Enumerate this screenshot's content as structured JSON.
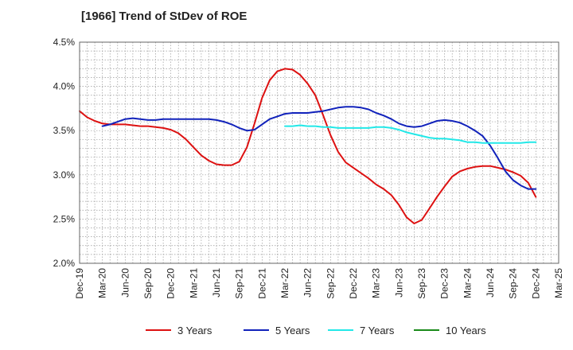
{
  "chart_data": {
    "type": "line",
    "title": "[1966]  Trend of StDev of ROE",
    "xlabel": "",
    "ylabel": "",
    "ylim": [
      2.0,
      4.5
    ],
    "y_ticks": [
      "2.0%",
      "2.5%",
      "3.0%",
      "3.5%",
      "4.0%",
      "4.5%"
    ],
    "y_tick_values": [
      2.0,
      2.5,
      3.0,
      3.5,
      4.0,
      4.5
    ],
    "x_ticks": [
      "Dec-19",
      "Mar-20",
      "Jun-20",
      "Sep-20",
      "Dec-20",
      "Mar-21",
      "Jun-21",
      "Sep-21",
      "Dec-21",
      "Mar-22",
      "Jun-22",
      "Sep-22",
      "Dec-22",
      "Mar-23",
      "Jun-23",
      "Sep-23",
      "Dec-23",
      "Mar-24",
      "Jun-24",
      "Sep-24",
      "Dec-24",
      "Mar-25"
    ],
    "x_tick_values": [
      "2019-12",
      "2020-03",
      "2020-06",
      "2020-09",
      "2020-12",
      "2021-03",
      "2021-06",
      "2021-09",
      "2021-12",
      "2022-03",
      "2022-06",
      "2022-09",
      "2022-12",
      "2023-03",
      "2023-06",
      "2023-09",
      "2023-12",
      "2024-03",
      "2024-06",
      "2024-09",
      "2024-12",
      "2025-03"
    ],
    "grid": true,
    "legend_position": "bottom",
    "series": [
      {
        "name": "3 Years",
        "color": "#dd1111",
        "x": [
          "2019-12",
          "2020-01",
          "2020-02",
          "2020-03",
          "2020-04",
          "2020-05",
          "2020-06",
          "2020-07",
          "2020-08",
          "2020-09",
          "2020-10",
          "2020-11",
          "2020-12",
          "2021-01",
          "2021-02",
          "2021-03",
          "2021-04",
          "2021-05",
          "2021-06",
          "2021-07",
          "2021-08",
          "2021-09",
          "2021-10",
          "2021-11",
          "2021-12",
          "2022-01",
          "2022-02",
          "2022-03",
          "2022-04",
          "2022-05",
          "2022-06",
          "2022-07",
          "2022-08",
          "2022-09",
          "2022-10",
          "2022-11",
          "2022-12",
          "2023-01",
          "2023-02",
          "2023-03",
          "2023-04",
          "2023-05",
          "2023-06",
          "2023-07",
          "2023-08",
          "2023-09",
          "2023-10",
          "2023-11",
          "2023-12",
          "2024-01",
          "2024-02",
          "2024-03",
          "2024-04",
          "2024-05",
          "2024-06",
          "2024-07",
          "2024-08",
          "2024-09",
          "2024-10",
          "2024-11",
          "2024-12"
        ],
        "values": [
          3.72,
          3.65,
          3.61,
          3.58,
          3.57,
          3.57,
          3.57,
          3.56,
          3.55,
          3.55,
          3.54,
          3.53,
          3.51,
          3.47,
          3.4,
          3.31,
          3.22,
          3.16,
          3.12,
          3.11,
          3.11,
          3.15,
          3.31,
          3.58,
          3.87,
          4.07,
          4.17,
          4.2,
          4.19,
          4.13,
          4.03,
          3.9,
          3.68,
          3.45,
          3.26,
          3.14,
          3.08,
          3.02,
          2.96,
          2.89,
          2.84,
          2.77,
          2.66,
          2.52,
          2.45,
          2.49,
          2.62,
          2.75,
          2.87,
          2.98,
          3.04,
          3.07,
          3.09,
          3.1,
          3.1,
          3.08,
          3.06,
          3.03,
          2.99,
          2.91,
          2.75
        ]
      },
      {
        "name": "5 Years",
        "color": "#1122bb",
        "x": [
          "2020-03",
          "2020-04",
          "2020-05",
          "2020-06",
          "2020-07",
          "2020-08",
          "2020-09",
          "2020-10",
          "2020-11",
          "2020-12",
          "2021-01",
          "2021-02",
          "2021-03",
          "2021-04",
          "2021-05",
          "2021-06",
          "2021-07",
          "2021-08",
          "2021-09",
          "2021-10",
          "2021-11",
          "2021-12",
          "2022-01",
          "2022-02",
          "2022-03",
          "2022-04",
          "2022-05",
          "2022-06",
          "2022-07",
          "2022-08",
          "2022-09",
          "2022-10",
          "2022-11",
          "2022-12",
          "2023-01",
          "2023-02",
          "2023-03",
          "2023-04",
          "2023-05",
          "2023-06",
          "2023-07",
          "2023-08",
          "2023-09",
          "2023-10",
          "2023-11",
          "2023-12",
          "2024-01",
          "2024-02",
          "2024-03",
          "2024-04",
          "2024-05",
          "2024-06",
          "2024-07",
          "2024-08",
          "2024-09",
          "2024-10",
          "2024-11",
          "2024-12"
        ],
        "values": [
          3.55,
          3.57,
          3.6,
          3.63,
          3.64,
          3.63,
          3.62,
          3.62,
          3.63,
          3.63,
          3.63,
          3.63,
          3.63,
          3.63,
          3.63,
          3.62,
          3.6,
          3.57,
          3.53,
          3.5,
          3.51,
          3.57,
          3.63,
          3.66,
          3.69,
          3.7,
          3.7,
          3.7,
          3.71,
          3.72,
          3.74,
          3.76,
          3.77,
          3.77,
          3.76,
          3.74,
          3.7,
          3.67,
          3.63,
          3.58,
          3.55,
          3.54,
          3.55,
          3.58,
          3.61,
          3.62,
          3.61,
          3.59,
          3.55,
          3.5,
          3.44,
          3.33,
          3.19,
          3.04,
          2.94,
          2.88,
          2.84,
          2.84
        ]
      },
      {
        "name": "7 Years",
        "color": "#22e8e8",
        "x": [
          "2022-03",
          "2022-04",
          "2022-05",
          "2022-06",
          "2022-07",
          "2022-08",
          "2022-09",
          "2022-10",
          "2022-11",
          "2022-12",
          "2023-01",
          "2023-02",
          "2023-03",
          "2023-04",
          "2023-05",
          "2023-06",
          "2023-07",
          "2023-08",
          "2023-09",
          "2023-10",
          "2023-11",
          "2023-12",
          "2024-01",
          "2024-02",
          "2024-03",
          "2024-04",
          "2024-05",
          "2024-06",
          "2024-07",
          "2024-08",
          "2024-09",
          "2024-10",
          "2024-11",
          "2024-12"
        ],
        "values": [
          3.55,
          3.55,
          3.56,
          3.55,
          3.55,
          3.54,
          3.54,
          3.53,
          3.53,
          3.53,
          3.53,
          3.53,
          3.54,
          3.54,
          3.53,
          3.51,
          3.48,
          3.46,
          3.44,
          3.42,
          3.41,
          3.41,
          3.4,
          3.39,
          3.37,
          3.37,
          3.36,
          3.36,
          3.36,
          3.36,
          3.36,
          3.36,
          3.37,
          3.37
        ]
      },
      {
        "name": "10 Years",
        "color": "#1a8a1a",
        "x": [],
        "values": []
      }
    ]
  }
}
